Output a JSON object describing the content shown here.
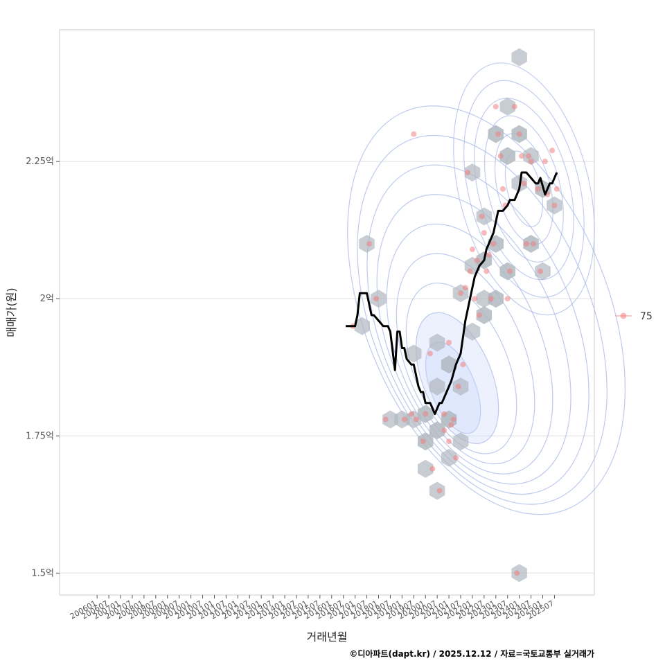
{
  "chart_data": {
    "type": "scatter",
    "title": "",
    "xlabel": "거래년월",
    "ylabel": "매매가(원)",
    "caption": "©디아파트(dapt.kr) / 2025.12.12 / 자료=국토교통부 실거래가",
    "x_tick_labels": [
      "200601",
      "200607",
      "200701",
      "200707",
      "200801",
      "200807",
      "200901",
      "200907",
      "201001",
      "201007",
      "201101",
      "201107",
      "201201",
      "201207",
      "201301",
      "201307",
      "201401",
      "201407",
      "201501",
      "201507",
      "201601",
      "201607",
      "201701",
      "201707",
      "201801",
      "201807",
      "201901",
      "201907",
      "202001",
      "202007",
      "202101",
      "202107",
      "202201",
      "202207",
      "202301",
      "202307",
      "202401",
      "202407",
      "202501",
      "202507"
    ],
    "xlim": [
      2004.4,
      2027.2
    ],
    "ylim": [
      1.46,
      2.49
    ],
    "y_ticks": [
      1.5,
      1.75,
      2.0,
      2.25
    ],
    "y_tick_labels": [
      "1.5억",
      "1.75억",
      "2억",
      "2.25억"
    ],
    "legend": {
      "entries": [
        "75"
      ],
      "position": "right"
    },
    "colors": {
      "points": "#f08080",
      "hex": "#b0b8c0",
      "contour": "#a8b8e8",
      "trend": "#000000",
      "grid": "#e0e0e0",
      "panel_border": "#cccccc"
    },
    "series": [
      {
        "name": "75",
        "kind": "points",
        "x": [
          2016.9,
          2017.6,
          2017.9,
          2018.3,
          2019.1,
          2019.4,
          2019.5,
          2019.6,
          2019.9,
          2020.0,
          2020.2,
          2020.3,
          2020.6,
          2020.8,
          2020.8,
          2021.0,
          2021.0,
          2021.1,
          2021.2,
          2021.3,
          2021.4,
          2021.5,
          2021.6,
          2021.7,
          2021.8,
          2021.9,
          2022.0,
          2022.1,
          2022.2,
          2022.3,
          2022.4,
          2022.5,
          2022.6,
          2022.7,
          2022.8,
          2022.9,
          2023.0,
          2023.1,
          2023.2,
          2023.3,
          2023.4,
          2023.5,
          2023.6,
          2023.8,
          2023.9,
          2024.0,
          2024.1,
          2024.2,
          2024.3,
          2024.4,
          2024.5,
          2024.6,
          2024.8,
          2024.9,
          2025.1,
          2025.2,
          2025.4,
          2025.5,
          2025.6
        ],
        "y": [
          1.95,
          2.1,
          2.0,
          1.78,
          1.78,
          1.79,
          2.3,
          1.78,
          1.74,
          1.79,
          1.9,
          1.69,
          1.65,
          1.76,
          1.79,
          1.92,
          1.74,
          1.77,
          1.78,
          1.71,
          1.84,
          2.01,
          1.88,
          2.02,
          2.23,
          2.05,
          2.09,
          2.0,
          2.07,
          1.97,
          2.15,
          2.12,
          2.05,
          2.08,
          2.0,
          2.1,
          2.35,
          2.3,
          2.26,
          2.2,
          2.17,
          2.0,
          2.05,
          2.35,
          1.5,
          2.3,
          2.26,
          2.21,
          2.1,
          2.26,
          2.25,
          2.1,
          2.2,
          2.05,
          2.25,
          2.19,
          2.27,
          2.17,
          2.2
        ]
      },
      {
        "name": "trend",
        "kind": "line",
        "x": [
          2016.6,
          2017.0,
          2017.1,
          2017.2,
          2017.3,
          2017.5,
          2017.7,
          2017.8,
          2018.0,
          2018.2,
          2018.4,
          2018.5,
          2018.7,
          2018.8,
          2018.9,
          2019.0,
          2019.1,
          2019.2,
          2019.4,
          2019.5,
          2019.7,
          2019.8,
          2019.9,
          2020.0,
          2020.2,
          2020.4,
          2020.5,
          2020.6,
          2020.7,
          2020.8,
          2020.9,
          2021.1,
          2021.3,
          2021.5,
          2021.7,
          2021.9,
          2022.0,
          2022.1,
          2022.3,
          2022.5,
          2022.6,
          2022.7,
          2022.8,
          2022.9,
          2023.1,
          2023.3,
          2023.5,
          2023.6,
          2023.8,
          2023.9,
          2024.0,
          2024.1,
          2024.3,
          2024.5,
          2024.7,
          2024.8,
          2024.9,
          2025.1,
          2025.3,
          2025.4,
          2025.5,
          2025.6
        ],
        "y": [
          1.95,
          1.95,
          1.97,
          2.01,
          2.01,
          2.01,
          1.97,
          1.97,
          1.96,
          1.95,
          1.95,
          1.94,
          1.87,
          1.94,
          1.94,
          1.91,
          1.91,
          1.89,
          1.88,
          1.88,
          1.84,
          1.83,
          1.83,
          1.81,
          1.81,
          1.79,
          1.8,
          1.81,
          1.81,
          1.82,
          1.83,
          1.85,
          1.88,
          1.9,
          1.96,
          2.0,
          2.02,
          2.04,
          2.06,
          2.07,
          2.09,
          2.1,
          2.11,
          2.12,
          2.16,
          2.16,
          2.17,
          2.18,
          2.18,
          2.19,
          2.2,
          2.23,
          2.23,
          2.22,
          2.21,
          2.21,
          2.22,
          2.19,
          2.21,
          2.21,
          2.22,
          2.23
        ]
      }
    ],
    "hexbins": {
      "x": [
        2017.5,
        2018.0,
        2018.5,
        2019.0,
        2019.5,
        2019.5,
        2020.0,
        2020.0,
        2020.0,
        2020.5,
        2020.5,
        2020.5,
        2020.5,
        2021.0,
        2021.0,
        2021.0,
        2021.5,
        2021.5,
        2021.5,
        2022.0,
        2022.0,
        2022.0,
        2022.5,
        2022.5,
        2022.5,
        2023.0,
        2023.0,
        2023.0,
        2023.5,
        2023.5,
        2023.5,
        2024.0,
        2024.0,
        2024.0,
        2024.5,
        2024.5,
        2025.0,
        2025.0,
        2025.5,
        2017.3,
        2022.5,
        2024.0
      ],
      "y": [
        2.1,
        2.0,
        1.78,
        1.78,
        1.78,
        1.9,
        1.69,
        1.74,
        1.79,
        1.65,
        1.76,
        1.84,
        1.92,
        1.71,
        1.78,
        1.88,
        1.74,
        1.84,
        2.01,
        1.94,
        2.06,
        2.23,
        1.97,
        2.07,
        2.15,
        2.0,
        2.1,
        2.3,
        2.05,
        2.26,
        2.35,
        1.5,
        2.21,
        2.3,
        2.1,
        2.26,
        2.05,
        2.2,
        2.17,
        1.95,
        2.0,
        2.44
      ],
      "count": [
        1,
        1,
        1,
        1,
        1,
        1,
        1,
        2,
        2,
        1,
        2,
        1,
        1,
        1,
        2,
        2,
        1,
        1,
        1,
        1,
        1,
        1,
        2,
        2,
        1,
        2,
        2,
        2,
        2,
        2,
        1,
        1,
        1,
        2,
        2,
        1,
        1,
        2,
        1,
        1,
        1,
        1
      ]
    },
    "density_contours": {
      "center": [
        2021.0,
        1.82
      ],
      "levels": 9
    }
  }
}
